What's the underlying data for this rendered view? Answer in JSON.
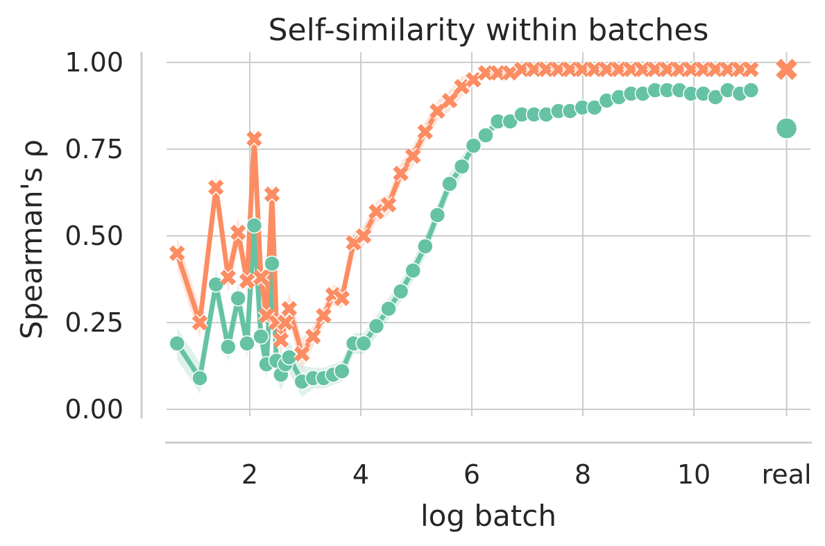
{
  "chart_data": {
    "type": "line",
    "title": "Self-similarity within batches",
    "xlabel": "log batch",
    "ylabel": "Spearman's ρ",
    "xlim": [
      0.5,
      12.1
    ],
    "ylim": [
      -0.07,
      1.03
    ],
    "x_ticks": [
      2,
      4,
      6,
      8,
      10
    ],
    "x_tick_labels": [
      "2",
      "4",
      "6",
      "8",
      "10"
    ],
    "extra_category_label": "real",
    "extra_category_x": 11.67,
    "y_ticks": [
      0.0,
      0.25,
      0.5,
      0.75,
      1.0
    ],
    "y_tick_labels": [
      "0.00",
      "0.25",
      "0.50",
      "0.75",
      "1.00"
    ],
    "grid": true,
    "colors": {
      "series_a": "#66c2a5",
      "series_b": "#fc8d62"
    },
    "x": [
      0.69,
      1.1,
      1.39,
      1.61,
      1.79,
      1.95,
      2.08,
      2.2,
      2.3,
      2.4,
      2.48,
      2.56,
      2.64,
      2.71,
      2.94,
      3.14,
      3.33,
      3.5,
      3.66,
      3.87,
      4.05,
      4.28,
      4.5,
      4.72,
      4.94,
      5.16,
      5.38,
      5.6,
      5.82,
      6.03,
      6.25,
      6.47,
      6.69,
      6.9,
      7.12,
      7.34,
      7.56,
      7.77,
      7.99,
      8.21,
      8.43,
      8.65,
      8.87,
      9.08,
      9.3,
      9.52,
      9.74,
      9.95,
      10.17,
      10.39,
      10.61,
      10.83,
      11.03
    ],
    "series": [
      {
        "marker": "circle",
        "values": [
          0.19,
          0.09,
          0.36,
          0.18,
          0.32,
          0.19,
          0.53,
          0.21,
          0.13,
          0.42,
          0.14,
          0.1,
          0.13,
          0.15,
          0.08,
          0.09,
          0.09,
          0.1,
          0.11,
          0.19,
          0.19,
          0.24,
          0.29,
          0.34,
          0.4,
          0.47,
          0.56,
          0.65,
          0.7,
          0.76,
          0.79,
          0.83,
          0.83,
          0.85,
          0.85,
          0.85,
          0.86,
          0.86,
          0.87,
          0.87,
          0.89,
          0.9,
          0.91,
          0.91,
          0.92,
          0.92,
          0.92,
          0.91,
          0.91,
          0.9,
          0.92,
          0.91,
          0.92
        ],
        "real": 0.81
      },
      {
        "marker": "x",
        "values": [
          0.45,
          0.25,
          0.64,
          0.38,
          0.51,
          0.37,
          0.78,
          0.38,
          0.27,
          0.62,
          0.25,
          0.2,
          0.25,
          0.29,
          0.16,
          0.21,
          0.27,
          0.33,
          0.32,
          0.48,
          0.5,
          0.57,
          0.59,
          0.68,
          0.73,
          0.8,
          0.86,
          0.89,
          0.93,
          0.95,
          0.97,
          0.97,
          0.97,
          0.98,
          0.98,
          0.98,
          0.98,
          0.98,
          0.98,
          0.98,
          0.98,
          0.98,
          0.98,
          0.98,
          0.98,
          0.98,
          0.98,
          0.98,
          0.98,
          0.98,
          0.98,
          0.98,
          0.98
        ],
        "real": 0.98
      }
    ]
  }
}
